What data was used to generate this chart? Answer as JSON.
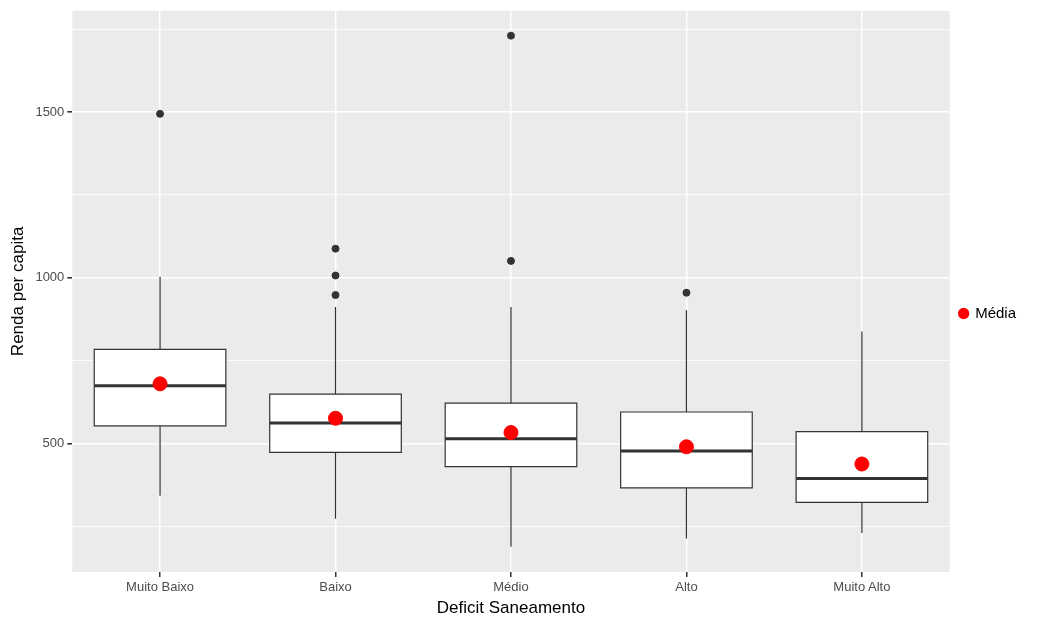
{
  "chart_data": {
    "type": "box",
    "xlabel": "Deficit Saneamento",
    "ylabel": "Renda per capita",
    "categories": [
      "Muito Baixo",
      "Baixo",
      "Médio",
      "Alto",
      "Muito Alto"
    ],
    "ylim": [
      112,
      1806
    ],
    "yticks": [
      {
        "value": 250,
        "label": null
      },
      500,
      {
        "value": 750,
        "label": null
      },
      1000,
      {
        "value": 1250,
        "label": null
      },
      1500,
      {
        "value": 1750,
        "label": null
      }
    ],
    "grid": true,
    "legend": "right",
    "series": [
      {
        "boxes": [
          {
            "low": 342,
            "q1": 553,
            "median": 674,
            "q3": 784,
            "high": 1003,
            "outliers": [
              1495
            ]
          },
          {
            "low": 273,
            "q1": 473,
            "median": 562,
            "q3": 649,
            "high": 912,
            "outliers": [
              948,
              1007,
              1088
            ]
          },
          {
            "low": 188,
            "q1": 430,
            "median": 514,
            "q3": 622,
            "high": 912,
            "outliers": [
              1051,
              1731
            ]
          },
          {
            "low": 213,
            "q1": 366,
            "median": 477,
            "q3": 595,
            "high": 902,
            "outliers": [
              955
            ]
          },
          {
            "low": 230,
            "q1": 322,
            "median": 394,
            "q3": 536,
            "high": 838
          }
        ]
      },
      {
        "type": "scatter",
        "name": "Média",
        "color": "#ff0000",
        "marker": "circle",
        "x": [
          "Muito Baixo",
          "Baixo",
          "Médio",
          "Alto",
          "Muito Alto"
        ],
        "values": [
          680,
          576,
          533,
          490,
          438
        ]
      }
    ]
  }
}
